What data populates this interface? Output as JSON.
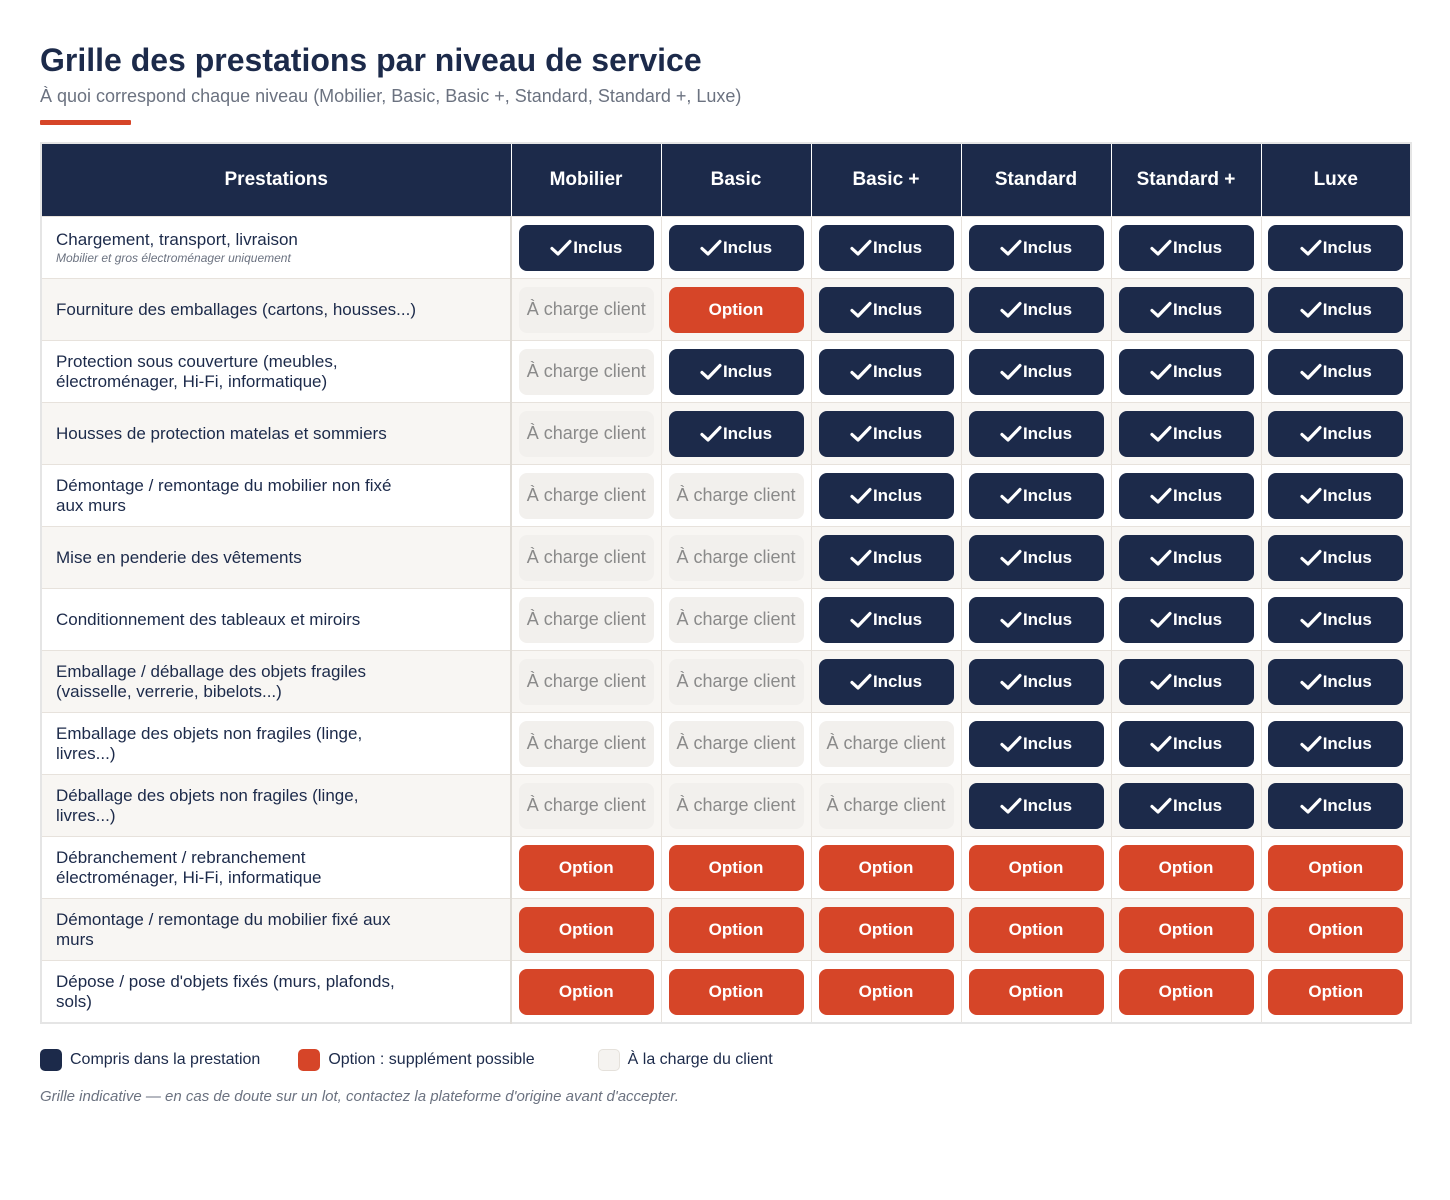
{
  "header": {
    "title": "Grille des prestations par niveau de service",
    "subtitle": "À quoi correspond chaque niveau (Mobilier, Basic, Basic +, Standard, Standard +, Luxe)",
    "accent_color": "#d64528"
  },
  "labels": {
    "inclus": "Inclus",
    "option": "Option",
    "client": "À charge client"
  },
  "table": {
    "columns": [
      "Prestations",
      "Mobilier",
      "Basic",
      "Basic +",
      "Standard",
      "Standard +",
      "Luxe"
    ],
    "rows": [
      {
        "label": "Chargement, transport, livraison",
        "note": "Mobilier et gros électroménager uniquement",
        "values": [
          "inclus",
          "inclus",
          "inclus",
          "inclus",
          "inclus",
          "inclus"
        ]
      },
      {
        "label": "Fourniture des emballages (cartons, housses...)",
        "values": [
          "client",
          "option",
          "inclus",
          "inclus",
          "inclus",
          "inclus"
        ]
      },
      {
        "label": "Protection sous couverture (meubles, électroménager, Hi-Fi, informatique)",
        "values": [
          "client",
          "inclus",
          "inclus",
          "inclus",
          "inclus",
          "inclus"
        ]
      },
      {
        "label": "Housses de protection matelas et sommiers",
        "values": [
          "client",
          "inclus",
          "inclus",
          "inclus",
          "inclus",
          "inclus"
        ]
      },
      {
        "label": "Démontage / remontage du mobilier non fixé aux murs",
        "values": [
          "client",
          "client",
          "inclus",
          "inclus",
          "inclus",
          "inclus"
        ]
      },
      {
        "label": "Mise en penderie des vêtements",
        "values": [
          "client",
          "client",
          "inclus",
          "inclus",
          "inclus",
          "inclus"
        ]
      },
      {
        "label": "Conditionnement des tableaux et miroirs",
        "values": [
          "client",
          "client",
          "inclus",
          "inclus",
          "inclus",
          "inclus"
        ]
      },
      {
        "label": "Emballage / déballage des objets fragiles (vaisselle, verrerie, bibelots...)",
        "values": [
          "client",
          "client",
          "inclus",
          "inclus",
          "inclus",
          "inclus"
        ]
      },
      {
        "label": "Emballage des objets non fragiles (linge, livres...)",
        "values": [
          "client",
          "client",
          "client",
          "inclus",
          "inclus",
          "inclus"
        ]
      },
      {
        "label": "Déballage des objets non fragiles (linge, livres...)",
        "values": [
          "client",
          "client",
          "client",
          "inclus",
          "inclus",
          "inclus"
        ]
      },
      {
        "label": "Débranchement / rebranchement électroménager, Hi-Fi, informatique",
        "values": [
          "option",
          "option",
          "option",
          "option",
          "option",
          "option"
        ]
      },
      {
        "label": "Démontage / remontage du mobilier fixé aux murs",
        "values": [
          "option",
          "option",
          "option",
          "option",
          "option",
          "option"
        ]
      },
      {
        "label": "Dépose / pose d'objets fixés (murs, plafonds, sols)",
        "values": [
          "option",
          "option",
          "option",
          "option",
          "option",
          "option"
        ]
      }
    ]
  },
  "legend": [
    {
      "kind": "inclus",
      "label": "Compris dans la prestation",
      "color": "#1c2a4a"
    },
    {
      "kind": "option",
      "label": "Option : supplément possible",
      "color": "#d64528"
    },
    {
      "kind": "client",
      "label": "À la charge du client",
      "color": "#f5f3f0"
    }
  ],
  "footnote": "Grille indicative — en cas de doute sur un lot, contactez la plateforme d'origine avant d'accepter.",
  "colors": {
    "navy": "#1c2a4a",
    "orange": "#d64528",
    "client_bg": "#f2f0ed"
  }
}
